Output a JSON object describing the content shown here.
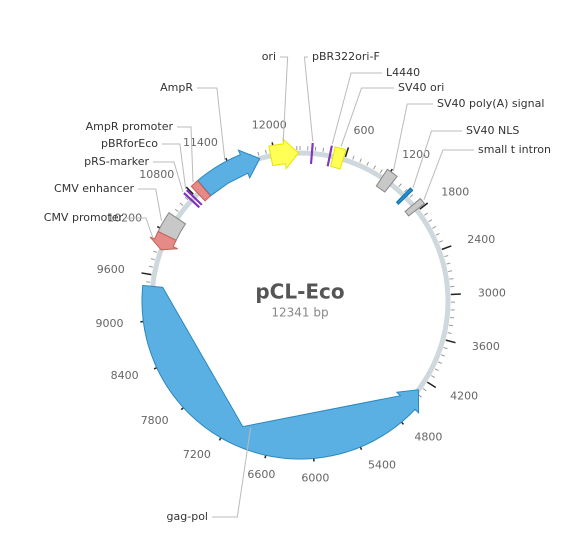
{
  "title": "pCL-Eco",
  "length": {
    "value": 12341,
    "label": "12341 bp"
  },
  "ticks": [
    600,
    1200,
    1800,
    2400,
    3000,
    3600,
    4200,
    4800,
    5400,
    6000,
    6600,
    7200,
    7800,
    8400,
    9000,
    9600,
    10200,
    10800,
    11400,
    12000
  ],
  "features": [
    {
      "name": "ori",
      "start": 11950,
      "end": 12320,
      "direction": "forward",
      "color": "#ffff55"
    },
    {
      "name": "pBR322ori-F",
      "start": 150,
      "end": 165,
      "direction": "none",
      "color": "#a450d8"
    },
    {
      "name": "L4440",
      "start": 390,
      "end": 405,
      "direction": "none",
      "color": "#a450d8"
    },
    {
      "name": "SV40 ori",
      "start": 440,
      "end": 580,
      "direction": "none",
      "color": "#ffff55"
    },
    {
      "name": "SV40 poly(A) signal",
      "start": 1150,
      "end": 1300,
      "direction": "none",
      "color": "#c8c8c8"
    },
    {
      "name": "SV40 NLS",
      "start": 1520,
      "end": 1560,
      "direction": "none",
      "color": "#1e8fd0"
    },
    {
      "name": "small t intron",
      "start": 1700,
      "end": 1780,
      "direction": "none",
      "color": "#c8c8c8"
    },
    {
      "name": "AmpR",
      "start": 10960,
      "end": 11800,
      "direction": "forward",
      "color": "#5ab0e2"
    },
    {
      "name": "AmpR promoter",
      "start": 10850,
      "end": 10955,
      "direction": "none",
      "color": "#e58a86"
    },
    {
      "name": "pBRforEco",
      "start": 10770,
      "end": 10785,
      "direction": "none",
      "color": "#a450d8"
    },
    {
      "name": "pRS-marker",
      "start": 10720,
      "end": 10735,
      "direction": "none",
      "color": "#a450d8"
    },
    {
      "name": "CMV enhancer",
      "start": 10150,
      "end": 10420,
      "direction": "none",
      "color": "#c8c8c8"
    },
    {
      "name": "CMV promoter",
      "start": 9950,
      "end": 10150,
      "direction": "reverse",
      "color": "#e58a86"
    },
    {
      "name": "gag-pol",
      "start": 4350,
      "end": 9450,
      "direction": "reverse",
      "color": "#5ab0e2"
    }
  ]
}
